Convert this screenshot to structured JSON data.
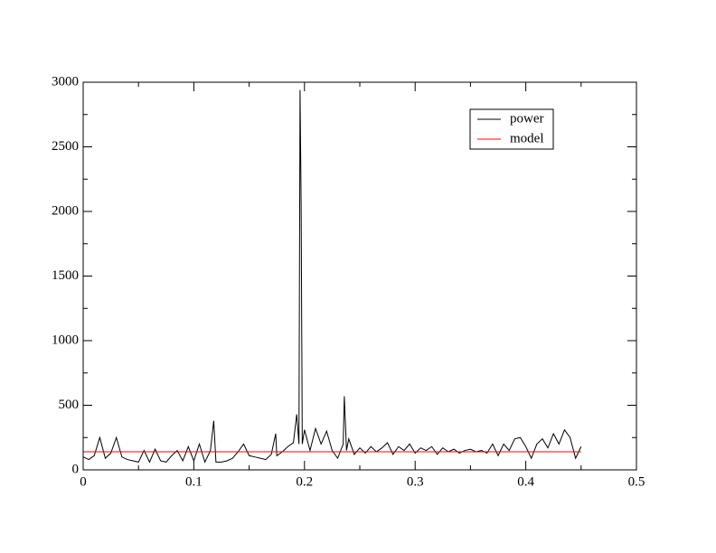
{
  "chart_data": {
    "type": "line",
    "series": [
      {
        "name": "power",
        "color": "#000000",
        "x": [
          0,
          0.005,
          0.01,
          0.015,
          0.02,
          0.025,
          0.03,
          0.035,
          0.04,
          0.045,
          0.05,
          0.055,
          0.06,
          0.065,
          0.07,
          0.075,
          0.08,
          0.085,
          0.09,
          0.095,
          0.1,
          0.105,
          0.11,
          0.115,
          0.118,
          0.12,
          0.125,
          0.13,
          0.135,
          0.14,
          0.145,
          0.15,
          0.155,
          0.16,
          0.165,
          0.17,
          0.174,
          0.175,
          0.18,
          0.185,
          0.19,
          0.193,
          0.195,
          0.196,
          0.197,
          0.198,
          0.2,
          0.205,
          0.21,
          0.215,
          0.22,
          0.225,
          0.23,
          0.235,
          0.236,
          0.238,
          0.24,
          0.245,
          0.25,
          0.255,
          0.26,
          0.265,
          0.27,
          0.275,
          0.28,
          0.285,
          0.29,
          0.295,
          0.3,
          0.305,
          0.31,
          0.315,
          0.32,
          0.325,
          0.33,
          0.335,
          0.34,
          0.345,
          0.35,
          0.355,
          0.36,
          0.365,
          0.37,
          0.375,
          0.38,
          0.385,
          0.39,
          0.395,
          0.4,
          0.405,
          0.41,
          0.415,
          0.42,
          0.425,
          0.43,
          0.435,
          0.44,
          0.445,
          0.45
        ],
        "values": [
          100,
          80,
          110,
          250,
          90,
          130,
          250,
          100,
          80,
          70,
          60,
          150,
          60,
          160,
          70,
          60,
          110,
          150,
          70,
          180,
          70,
          200,
          60,
          150,
          380,
          60,
          60,
          70,
          90,
          140,
          200,
          110,
          100,
          90,
          80,
          120,
          280,
          110,
          140,
          180,
          210,
          430,
          200,
          2940,
          2050,
          200,
          310,
          150,
          320,
          200,
          300,
          150,
          90,
          200,
          570,
          150,
          240,
          120,
          170,
          130,
          180,
          140,
          170,
          210,
          120,
          180,
          150,
          200,
          130,
          170,
          150,
          180,
          120,
          170,
          140,
          160,
          130,
          150,
          160,
          140,
          150,
          130,
          200,
          110,
          200,
          150,
          240,
          250,
          180,
          90,
          200,
          240,
          170,
          280,
          200,
          310,
          250,
          90,
          180
        ]
      },
      {
        "name": "model",
        "color": "#ff0000",
        "x": [
          0,
          0.45
        ],
        "values": [
          140,
          140
        ]
      }
    ],
    "xlim": [
      0,
      0.5
    ],
    "xticks": [
      0,
      0.1,
      0.2,
      0.3,
      0.4,
      0.5
    ],
    "xminorticks": [
      0.05,
      0.15,
      0.25,
      0.35,
      0.45
    ],
    "ylim": [
      0,
      3000
    ],
    "yticks": [
      0,
      500,
      1000,
      1500,
      2000,
      2500,
      3000
    ],
    "yminorticks": [
      250,
      750,
      1250,
      1750,
      2250,
      2750
    ],
    "legend": "upper right"
  }
}
